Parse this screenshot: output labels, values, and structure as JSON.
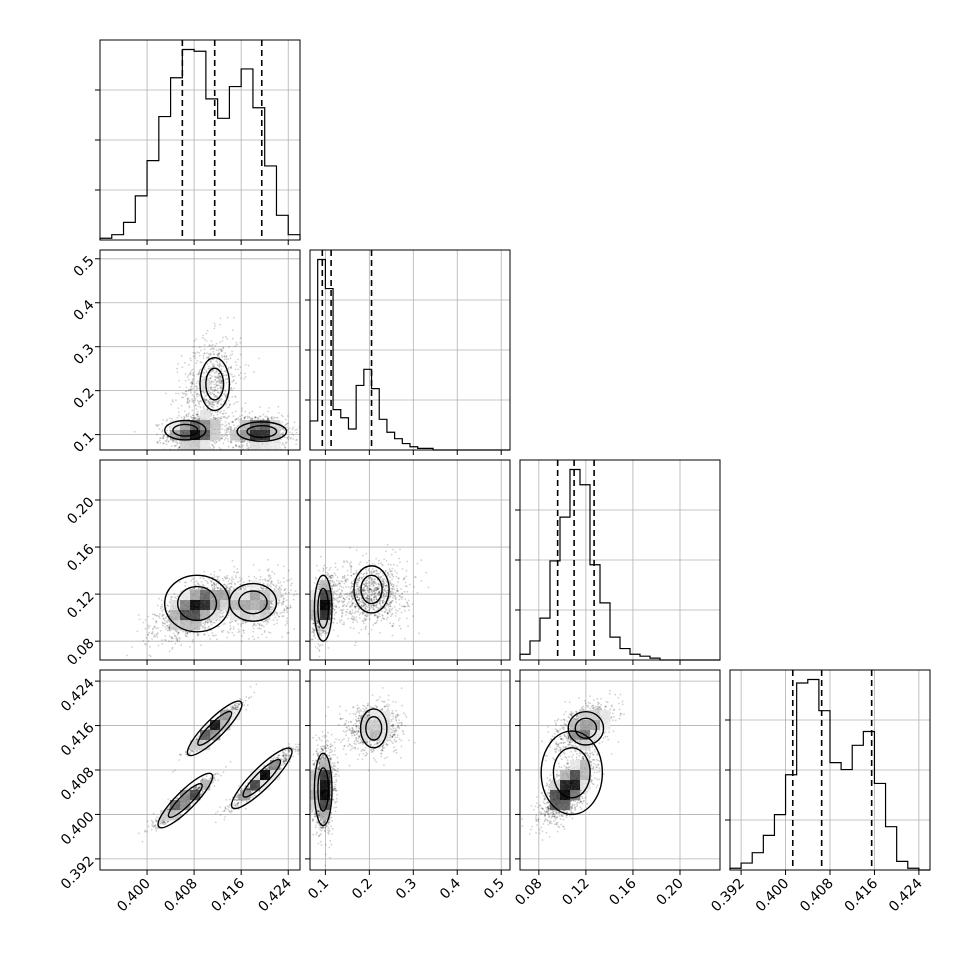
{
  "chart_data": {
    "type": "corner",
    "parameters": [
      {
        "id": "p0",
        "label": "",
        "range": [
          0.392,
          0.426
        ],
        "ticks": [
          0.4,
          0.408,
          0.416,
          0.424
        ],
        "tick_labels": [
          "0.400",
          "0.408",
          "0.416",
          "0.424"
        ],
        "quantiles": [
          0.406,
          0.4115,
          0.4195
        ]
      },
      {
        "id": "p1",
        "label": "",
        "range": [
          0.065,
          0.52
        ],
        "ticks": [
          0.1,
          0.2,
          0.3,
          0.4,
          0.5
        ],
        "tick_labels": [
          "0.1",
          "0.2",
          "0.3",
          "0.4",
          "0.5"
        ],
        "quantiles": [
          0.093,
          0.113,
          0.205
        ]
      },
      {
        "id": "p2",
        "label": "",
        "range": [
          0.064,
          0.234
        ],
        "ticks": [
          0.08,
          0.12,
          0.16,
          0.2
        ],
        "tick_labels": [
          "0.08",
          "0.12",
          "0.16",
          "0.20"
        ],
        "quantiles": [
          0.096,
          0.11,
          0.127
        ]
      },
      {
        "id": "p3",
        "label": "",
        "range": [
          0.39,
          0.426
        ],
        "ticks": [
          0.392,
          0.4,
          0.408,
          0.416,
          0.424
        ],
        "tick_labels": [
          "0.392",
          "0.400",
          "0.408",
          "0.416",
          "0.424"
        ],
        "quantiles": [
          0.4013,
          0.4065,
          0.4155
        ]
      }
    ],
    "histograms": [
      {
        "param": "p0",
        "edges": [
          0.392,
          0.394,
          0.396,
          0.398,
          0.4,
          0.402,
          0.404,
          0.406,
          0.408,
          0.41,
          0.412,
          0.414,
          0.416,
          0.418,
          0.42,
          0.422,
          0.424,
          0.426
        ],
        "counts": [
          1,
          3,
          10,
          25,
          45,
          70,
          92,
          108,
          107,
          80,
          69,
          87,
          97,
          75,
          42,
          14,
          3
        ]
      },
      {
        "param": "p1",
        "edges": [
          0.065,
          0.0825,
          0.1,
          0.1175,
          0.135,
          0.1525,
          0.17,
          0.1875,
          0.205,
          0.2225,
          0.24,
          0.2575,
          0.275,
          0.2925,
          0.31,
          0.3275,
          0.345,
          0.3625,
          0.38,
          0.52
        ],
        "counts": [
          18,
          118,
          100,
          25,
          20,
          13,
          40,
          50,
          38,
          19,
          11,
          7,
          4,
          2,
          1,
          1,
          0,
          0,
          0
        ]
      },
      {
        "param": "p2",
        "edges": [
          0.064,
          0.0725,
          0.081,
          0.0895,
          0.098,
          0.1065,
          0.115,
          0.1235,
          0.132,
          0.1405,
          0.149,
          0.1575,
          0.166,
          0.1745,
          0.183,
          0.1915,
          0.234
        ],
        "counts": [
          3,
          10,
          22,
          52,
          75,
          100,
          92,
          50,
          30,
          12,
          6,
          3,
          2,
          1,
          0,
          0
        ]
      },
      {
        "param": "p3",
        "edges": [
          0.39,
          0.392,
          0.394,
          0.396,
          0.398,
          0.4,
          0.402,
          0.404,
          0.406,
          0.408,
          0.41,
          0.412,
          0.414,
          0.416,
          0.418,
          0.42,
          0.422,
          0.424,
          0.426
        ],
        "counts": [
          1,
          4,
          10,
          20,
          32,
          55,
          108,
          110,
          92,
          62,
          58,
          72,
          80,
          50,
          25,
          5,
          1,
          0
        ]
      }
    ],
    "scatter_panels": [
      {
        "x": "p0",
        "y": "p1",
        "clusters": [
          {
            "cx": 0.408,
            "cy": 0.105,
            "sx": 0.0025,
            "sy": 0.02,
            "rho": 0.1,
            "n": 900
          },
          {
            "cx": 0.411,
            "cy": 0.215,
            "sx": 0.0025,
            "sy": 0.055,
            "rho": 0.2,
            "n": 700
          },
          {
            "cx": 0.419,
            "cy": 0.105,
            "sx": 0.0025,
            "sy": 0.02,
            "rho": 0.0,
            "n": 900
          }
        ],
        "contours": [
          {
            "cx": 0.4065,
            "cy": 0.11,
            "rx": 0.0035,
            "ry": 0.022,
            "rot": 0
          },
          {
            "cx": 0.4115,
            "cy": 0.215,
            "rx": 0.0025,
            "ry": 0.06,
            "rot": 0
          },
          {
            "cx": 0.4195,
            "cy": 0.107,
            "rx": 0.0042,
            "ry": 0.022,
            "rot": 0
          }
        ]
      },
      {
        "x": "p0",
        "y": "p2",
        "clusters": [
          {
            "cx": 0.4085,
            "cy": 0.108,
            "sx": 0.0033,
            "sy": 0.012,
            "rho": 0.6,
            "n": 1600
          },
          {
            "cx": 0.4185,
            "cy": 0.112,
            "sx": 0.0028,
            "sy": 0.011,
            "rho": 0.2,
            "n": 900
          }
        ],
        "contours": [
          {
            "cx": 0.4085,
            "cy": 0.112,
            "rx": 0.0055,
            "ry": 0.024,
            "rot": 0
          },
          {
            "cx": 0.418,
            "cy": 0.113,
            "rx": 0.004,
            "ry": 0.016,
            "rot": 0
          }
        ]
      },
      {
        "x": "p1",
        "y": "p2",
        "clusters": [
          {
            "cx": 0.095,
            "cy": 0.11,
            "sx": 0.012,
            "sy": 0.012,
            "rho": 0.3,
            "n": 1400
          },
          {
            "cx": 0.205,
            "cy": 0.12,
            "sx": 0.04,
            "sy": 0.013,
            "rho": 0.1,
            "n": 1000
          }
        ],
        "contours": [
          {
            "cx": 0.095,
            "cy": 0.108,
            "rx": 0.02,
            "ry": 0.028,
            "rot": 0
          },
          {
            "cx": 0.205,
            "cy": 0.124,
            "rx": 0.04,
            "ry": 0.02,
            "rot": 0
          }
        ]
      },
      {
        "x": "p0",
        "y": "p3",
        "clusters": [
          {
            "cx": 0.4115,
            "cy": 0.4155,
            "sx": 0.0022,
            "sy": 0.0022,
            "rho": 0.95,
            "n": 800
          },
          {
            "cx": 0.4065,
            "cy": 0.4025,
            "sx": 0.0025,
            "sy": 0.0022,
            "rho": 0.95,
            "n": 800
          },
          {
            "cx": 0.4195,
            "cy": 0.4065,
            "sx": 0.0025,
            "sy": 0.0025,
            "rho": 0.95,
            "n": 900
          }
        ],
        "contours": [
          {
            "cx": 0.4115,
            "cy": 0.4155,
            "rx": 0.0045,
            "ry": 0.0012,
            "rot": 45
          },
          {
            "cx": 0.4065,
            "cy": 0.4025,
            "rx": 0.0045,
            "ry": 0.0012,
            "rot": 45
          },
          {
            "cx": 0.4195,
            "cy": 0.4065,
            "rx": 0.005,
            "ry": 0.0013,
            "rot": 45
          }
        ]
      },
      {
        "x": "p1",
        "y": "p3",
        "clusters": [
          {
            "cx": 0.095,
            "cy": 0.4045,
            "sx": 0.012,
            "sy": 0.0035,
            "rho": 0.1,
            "n": 1600
          },
          {
            "cx": 0.21,
            "cy": 0.4155,
            "sx": 0.03,
            "sy": 0.0022,
            "rho": 0.1,
            "n": 900
          }
        ],
        "contours": [
          {
            "cx": 0.095,
            "cy": 0.4045,
            "rx": 0.02,
            "ry": 0.0065,
            "rot": 0
          },
          {
            "cx": 0.21,
            "cy": 0.4155,
            "rx": 0.03,
            "ry": 0.0035,
            "rot": 0
          }
        ]
      },
      {
        "x": "p2",
        "y": "p3",
        "clusters": [
          {
            "cx": 0.105,
            "cy": 0.4045,
            "sx": 0.011,
            "sy": 0.003,
            "rho": 0.7,
            "n": 1500
          },
          {
            "cx": 0.118,
            "cy": 0.4155,
            "sx": 0.012,
            "sy": 0.0022,
            "rho": 0.5,
            "n": 900
          }
        ],
        "contours": [
          {
            "cx": 0.108,
            "cy": 0.4075,
            "rx": 0.026,
            "ry": 0.0075,
            "rot": 0
          },
          {
            "cx": 0.12,
            "cy": 0.4155,
            "rx": 0.015,
            "ry": 0.003,
            "rot": 0
          }
        ]
      }
    ]
  }
}
